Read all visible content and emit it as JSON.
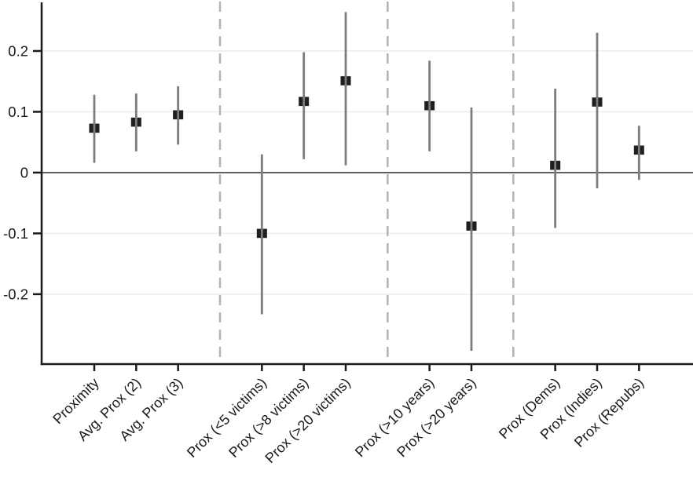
{
  "figure": {
    "title": "",
    "background_color": "#ffffff"
  },
  "colors": {
    "axis": "#1a1a1a",
    "label_text": "#1a1a1a",
    "gridline": "#ececec",
    "zero_line": "#5f6062",
    "separator": "#b3b3b3",
    "ci_line": "#7b7c7e",
    "marker": "#1f1f1f"
  },
  "chart_data": {
    "type": "scatter",
    "subtype": "coefficient-error-bar-plot",
    "title": "",
    "xlabel": "",
    "ylabel": "",
    "ylim": [
      -0.315,
      0.28
    ],
    "grid": "horizontal-light",
    "legend": "none",
    "yticks": [
      {
        "value": -0.2,
        "label": "-0.2"
      },
      {
        "value": -0.1,
        "label": "-0.1"
      },
      {
        "value": 0,
        "label": "0"
      },
      {
        "value": 0.1,
        "label": "0.1"
      },
      {
        "value": 0.2,
        "label": "0.2"
      }
    ],
    "zero_reference_line": 0,
    "total_slots": 14,
    "separator_slots": [
      3,
      7,
      10
    ],
    "groups": [
      {
        "name": "baseline-proximity",
        "labels": [
          "Proximity",
          "Avg. Prox (2)",
          "Avg. Prox (3)"
        ]
      },
      {
        "name": "by-victims",
        "labels": [
          "Prox (<5 victims)",
          "Prox (>8 victims)",
          "Prox (>20 victims)"
        ]
      },
      {
        "name": "by-years",
        "labels": [
          "Prox (>10 years)",
          "Prox (>20 years)"
        ]
      },
      {
        "name": "by-party",
        "labels": [
          "Prox (Dems)",
          "Prox (Indies)",
          "Prox (Repubs)"
        ]
      }
    ],
    "points": [
      {
        "slot": 0,
        "label": "Proximity",
        "estimate": 0.073,
        "ci_low": 0.016,
        "ci_high": 0.128
      },
      {
        "slot": 1,
        "label": "Avg. Prox (2)",
        "estimate": 0.083,
        "ci_low": 0.035,
        "ci_high": 0.13
      },
      {
        "slot": 2,
        "label": "Avg. Prox (3)",
        "estimate": 0.095,
        "ci_low": 0.046,
        "ci_high": 0.142
      },
      {
        "slot": 4,
        "label": "Prox (<5 victims)",
        "estimate": -0.1,
        "ci_low": -0.233,
        "ci_high": 0.03
      },
      {
        "slot": 5,
        "label": "Prox (>8 victims)",
        "estimate": 0.117,
        "ci_low": 0.022,
        "ci_high": 0.198
      },
      {
        "slot": 6,
        "label": "Prox (>20 victims)",
        "estimate": 0.151,
        "ci_low": 0.012,
        "ci_high": 0.264
      },
      {
        "slot": 8,
        "label": "Prox (>10 years)",
        "estimate": 0.11,
        "ci_low": 0.035,
        "ci_high": 0.184
      },
      {
        "slot": 9,
        "label": "Prox (>20 years)",
        "estimate": -0.088,
        "ci_low": -0.293,
        "ci_high": 0.107
      },
      {
        "slot": 11,
        "label": "Prox (Dems)",
        "estimate": 0.012,
        "ci_low": -0.091,
        "ci_high": 0.138
      },
      {
        "slot": 12,
        "label": "Prox (Indies)",
        "estimate": 0.116,
        "ci_low": -0.026,
        "ci_high": 0.23
      },
      {
        "slot": 13,
        "label": "Prox (Repubs)",
        "estimate": 0.037,
        "ci_low": -0.012,
        "ci_high": 0.077
      }
    ]
  }
}
